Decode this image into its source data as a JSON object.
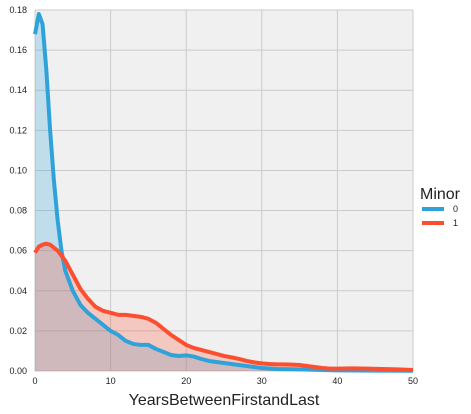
{
  "chart_data": {
    "type": "area",
    "title": "",
    "xlabel": "YearsBetweenFirstandLast",
    "ylabel": "",
    "xlim": [
      0,
      50
    ],
    "ylim": [
      0,
      0.18
    ],
    "x_ticks": [
      0,
      10,
      20,
      30,
      40,
      50
    ],
    "y_ticks": [
      0.0,
      0.02,
      0.04,
      0.06,
      0.08,
      0.1,
      0.12,
      0.14,
      0.16,
      0.18
    ],
    "x_tick_labels": [
      "0",
      "10",
      "20",
      "30",
      "40",
      "50"
    ],
    "y_tick_labels": [
      "0.00",
      "0.02",
      "0.04",
      "0.06",
      "0.08",
      "0.10",
      "0.12",
      "0.14",
      "0.16",
      "0.18"
    ],
    "grid": true,
    "legend": {
      "title": "Minor",
      "placement": "right"
    },
    "series": [
      {
        "name": "0",
        "color": "#30a2da",
        "points": [
          [
            0,
            0.168
          ],
          [
            0.5,
            0.178
          ],
          [
            1,
            0.173
          ],
          [
            1.5,
            0.15
          ],
          [
            2,
            0.12
          ],
          [
            2.5,
            0.095
          ],
          [
            3,
            0.075
          ],
          [
            3.5,
            0.06
          ],
          [
            4,
            0.05
          ],
          [
            5,
            0.04
          ],
          [
            6,
            0.033
          ],
          [
            7,
            0.029
          ],
          [
            8,
            0.026
          ],
          [
            9,
            0.023
          ],
          [
            10,
            0.02
          ],
          [
            11,
            0.018
          ],
          [
            12,
            0.015
          ],
          [
            13,
            0.0135
          ],
          [
            14,
            0.013
          ],
          [
            15,
            0.013
          ],
          [
            16,
            0.011
          ],
          [
            17,
            0.0095
          ],
          [
            18,
            0.008
          ],
          [
            19,
            0.0075
          ],
          [
            20,
            0.0078
          ],
          [
            21,
            0.0072
          ],
          [
            22,
            0.006
          ],
          [
            23,
            0.005
          ],
          [
            24,
            0.0045
          ],
          [
            25,
            0.004
          ],
          [
            26,
            0.0035
          ],
          [
            27,
            0.003
          ],
          [
            28,
            0.0025
          ],
          [
            29,
            0.002
          ],
          [
            30,
            0.0015
          ],
          [
            32,
            0.001
          ],
          [
            35,
            0.0008
          ],
          [
            38,
            0.0005
          ],
          [
            40,
            0.0003
          ],
          [
            45,
            0.0002
          ],
          [
            50,
            0.0001
          ]
        ]
      },
      {
        "name": "1",
        "color": "#fc4f30",
        "points": [
          [
            0,
            0.059
          ],
          [
            0.5,
            0.062
          ],
          [
            1,
            0.063
          ],
          [
            1.5,
            0.0635
          ],
          [
            2,
            0.063
          ],
          [
            3,
            0.06
          ],
          [
            4,
            0.055
          ],
          [
            5,
            0.048
          ],
          [
            6,
            0.041
          ],
          [
            7,
            0.036
          ],
          [
            8,
            0.032
          ],
          [
            9,
            0.03
          ],
          [
            10,
            0.029
          ],
          [
            11,
            0.028
          ],
          [
            12,
            0.028
          ],
          [
            13,
            0.0275
          ],
          [
            14,
            0.027
          ],
          [
            15,
            0.026
          ],
          [
            16,
            0.024
          ],
          [
            17,
            0.021
          ],
          [
            18,
            0.018
          ],
          [
            19,
            0.0155
          ],
          [
            20,
            0.013
          ],
          [
            21,
            0.0115
          ],
          [
            22,
            0.0105
          ],
          [
            23,
            0.0095
          ],
          [
            24,
            0.0085
          ],
          [
            25,
            0.0075
          ],
          [
            26,
            0.0068
          ],
          [
            27,
            0.006
          ],
          [
            28,
            0.005
          ],
          [
            29,
            0.0043
          ],
          [
            30,
            0.0038
          ],
          [
            31,
            0.0035
          ],
          [
            32,
            0.0033
          ],
          [
            33,
            0.0033
          ],
          [
            34,
            0.0032
          ],
          [
            35,
            0.003
          ],
          [
            36,
            0.0025
          ],
          [
            37,
            0.002
          ],
          [
            38,
            0.0015
          ],
          [
            39,
            0.0012
          ],
          [
            40,
            0.0012
          ],
          [
            42,
            0.0013
          ],
          [
            44,
            0.0012
          ],
          [
            46,
            0.001
          ],
          [
            48,
            0.0008
          ],
          [
            50,
            0.0005
          ]
        ]
      }
    ]
  }
}
